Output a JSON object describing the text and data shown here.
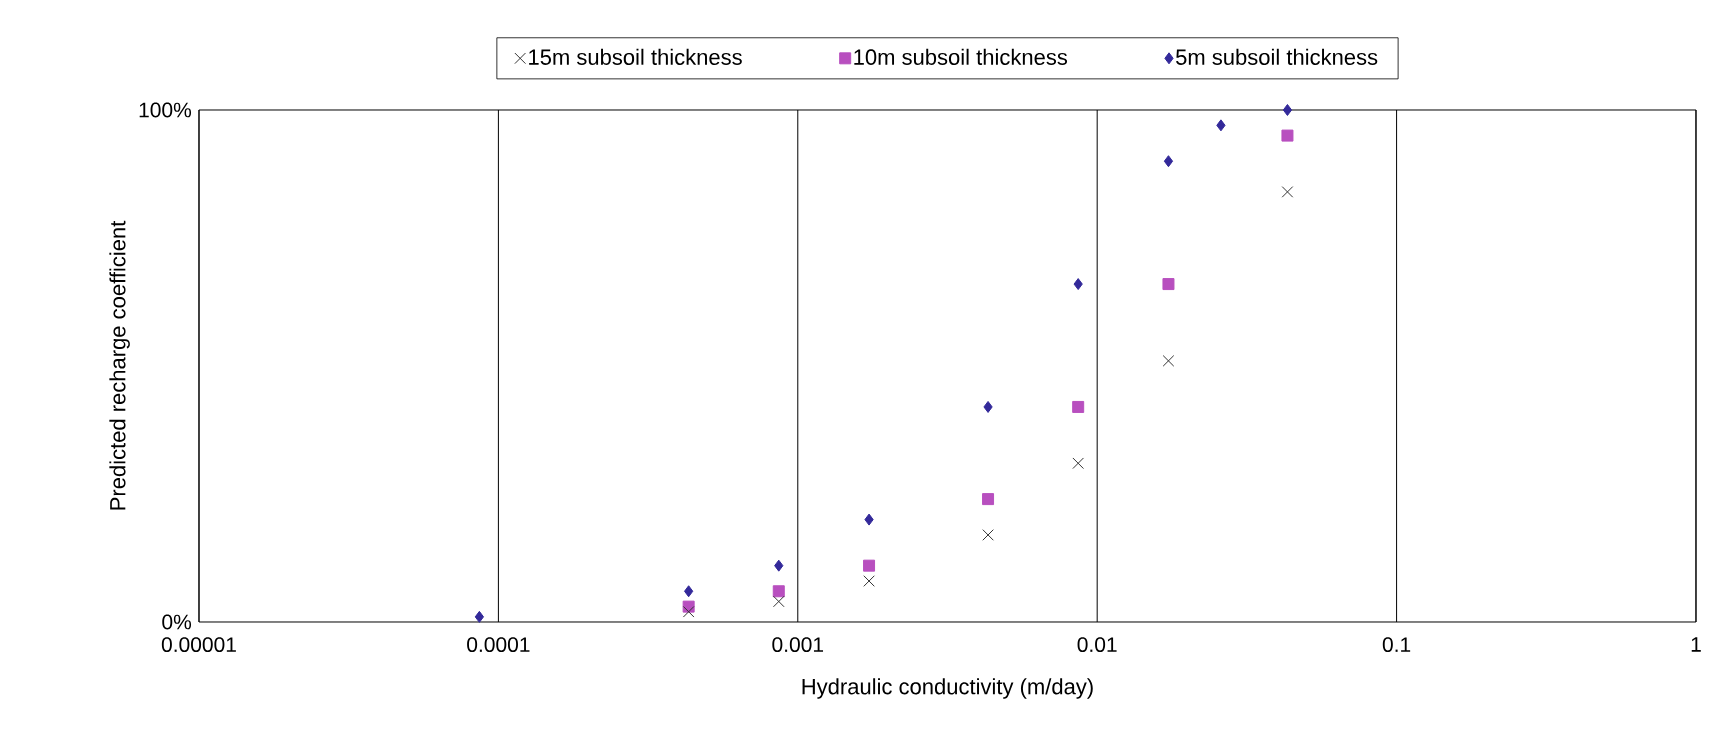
{
  "chart_data": {
    "type": "scatter",
    "xlabel": "Hydraulic conductivity (m/day)",
    "ylabel": "Predicted recharge coefficient",
    "log": "x",
    "grid": "x",
    "legend": "top",
    "xlim": [
      1e-05,
      1
    ],
    "ylim": [
      0,
      100
    ],
    "xticks": [
      {
        "value": 1e-05,
        "label": "0.00001"
      },
      {
        "value": 0.0001,
        "label": "0.0001"
      },
      {
        "value": 0.001,
        "label": "0.001"
      },
      {
        "value": 0.01,
        "label": "0.01"
      },
      {
        "value": 0.1,
        "label": "0.1"
      },
      {
        "value": 1,
        "label": "1"
      }
    ],
    "yticks": [
      {
        "value": 0,
        "label": "0%"
      },
      {
        "value": 100,
        "label": "100%"
      }
    ],
    "series": [
      {
        "name": "15m subsoil thickness",
        "color": "#333333",
        "marker": "cross",
        "x": [
          0.000432,
          0.000864,
          0.00173,
          0.00432,
          0.00864,
          0.0173,
          0.0432
        ],
        "values": [
          2,
          4,
          8,
          17,
          31,
          51,
          84
        ]
      },
      {
        "name": "10m subsoil thickness",
        "color": "#b84fbf",
        "marker": "square",
        "x": [
          0.000432,
          0.000864,
          0.00173,
          0.00432,
          0.00864,
          0.0173,
          0.0432
        ],
        "values": [
          3,
          6,
          11,
          24,
          42,
          66,
          95
        ]
      },
      {
        "name": "5m subsoil thickness",
        "color": "#33299a",
        "marker": "diamond",
        "x": [
          8.64e-05,
          0.000432,
          0.000864,
          0.00173,
          0.00432,
          0.00864,
          0.0173,
          0.0259,
          0.0432
        ],
        "values": [
          1,
          6,
          11,
          20,
          42,
          66,
          90,
          97,
          100
        ]
      }
    ]
  }
}
